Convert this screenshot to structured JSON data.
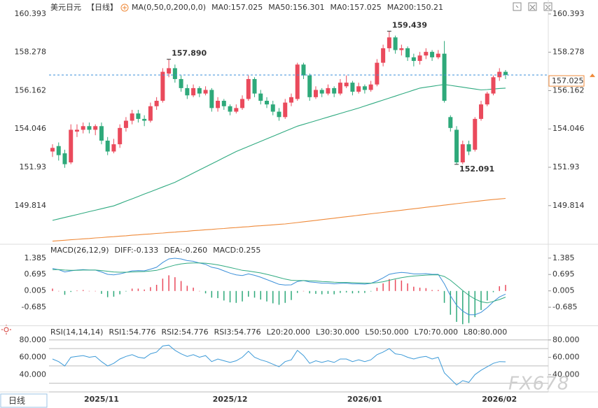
{
  "header": {
    "symbol": "美元日元",
    "period": "【日线】",
    "ma_label": "MA(0,50,0,200,0,0)"
  },
  "footer": {
    "period_button": "日线",
    "watermark": "FX678"
  },
  "chart_data": [
    {
      "type": "candlestick",
      "legend": [
        {
          "label": "MA0:157.025",
          "color": "#3b8fd9"
        },
        {
          "label": "MA50:156.301",
          "color": "#1aa39b"
        },
        {
          "label": "MA0:157.025",
          "color": "#26a9d6"
        },
        {
          "label": "MA200:150.21",
          "color": "#ef8a3a"
        }
      ],
      "categories": [
        null,
        null,
        null,
        null,
        null,
        null,
        null,
        null,
        "2025/11",
        null,
        null,
        null,
        null,
        null,
        null,
        null,
        null,
        null,
        null,
        null,
        null,
        null,
        null,
        null,
        null,
        null,
        null,
        null,
        null,
        "2025/12",
        null,
        null,
        null,
        null,
        null,
        null,
        null,
        null,
        null,
        null,
        null,
        null,
        null,
        null,
        null,
        null,
        null,
        null,
        null,
        null,
        null,
        "2026/01",
        null,
        null,
        null,
        null,
        null,
        null,
        null,
        null,
        null,
        null,
        null,
        null,
        null,
        null,
        null,
        null,
        null,
        null,
        null,
        null,
        null,
        "2026/02",
        null
      ],
      "open": [
        152.8,
        153.1,
        152.7,
        152.2,
        153.9,
        154.0,
        154.2,
        154.0,
        154.2,
        153.4,
        152.8,
        153.2,
        154.1,
        154.5,
        154.9,
        154.6,
        154.5,
        155.3,
        155.6,
        157.1,
        157.4,
        156.8,
        156.3,
        155.9,
        156.3,
        156.0,
        156.2,
        155.2,
        155.6,
        155.3,
        155.0,
        155.2,
        155.7,
        156.8,
        156.0,
        155.6,
        155.4,
        155.0,
        154.7,
        155.5,
        155.7,
        157.6,
        157.0,
        155.8,
        156.2,
        156.0,
        156.3,
        156.0,
        156.4,
        156.6,
        156.1,
        156.4,
        156.2,
        156.5,
        157.7,
        158.5,
        159.1,
        158.4,
        158.5,
        158.0,
        157.8,
        158.1,
        158.3,
        158.0,
        158.2,
        154.7,
        154.0,
        152.2,
        153.2,
        152.9,
        154.6,
        155.4,
        156.0,
        156.9,
        157.2
      ],
      "high": [
        153.2,
        153.3,
        152.9,
        154.3,
        154.3,
        154.4,
        154.4,
        154.3,
        154.4,
        153.6,
        153.5,
        154.3,
        154.7,
        155.1,
        155.1,
        154.8,
        155.5,
        155.8,
        157.4,
        157.89,
        157.6,
        157.0,
        156.5,
        156.5,
        156.4,
        156.4,
        156.3,
        155.8,
        155.7,
        155.4,
        155.4,
        155.9,
        157.0,
        156.9,
        156.2,
        155.8,
        155.6,
        155.2,
        155.7,
        156.0,
        157.7,
        157.7,
        157.1,
        156.4,
        156.3,
        156.5,
        156.4,
        156.8,
        157.0,
        156.7,
        156.6,
        156.5,
        156.7,
        157.9,
        158.7,
        159.439,
        159.2,
        158.7,
        158.6,
        158.2,
        158.3,
        158.5,
        158.4,
        158.4,
        158.9,
        154.8,
        154.2,
        153.4,
        153.4,
        154.7,
        155.6,
        156.1,
        157.0,
        157.4,
        157.3
      ],
      "low": [
        152.5,
        152.3,
        151.9,
        152.1,
        153.6,
        153.8,
        153.8,
        153.7,
        153.2,
        152.6,
        152.7,
        153.0,
        153.9,
        154.3,
        154.4,
        154.2,
        154.4,
        155.1,
        155.5,
        156.9,
        156.6,
        156.1,
        155.7,
        155.8,
        155.8,
        155.9,
        155.0,
        155.0,
        155.1,
        154.8,
        154.9,
        155.1,
        155.6,
        155.8,
        155.4,
        155.2,
        154.8,
        154.5,
        154.6,
        155.3,
        155.6,
        156.8,
        155.6,
        155.7,
        155.8,
        155.9,
        155.8,
        155.9,
        156.3,
        155.9,
        156.0,
        156.0,
        156.1,
        156.4,
        157.5,
        158.3,
        158.2,
        158.1,
        157.8,
        157.5,
        157.6,
        157.9,
        157.8,
        157.9,
        155.5,
        153.9,
        152.091,
        152.1,
        152.6,
        152.8,
        154.5,
        155.3,
        155.9,
        156.7,
        156.8
      ],
      "close": [
        153.0,
        152.6,
        152.1,
        154.0,
        154.0,
        154.2,
        154.0,
        154.2,
        153.4,
        152.8,
        153.2,
        154.1,
        154.5,
        154.9,
        154.6,
        154.5,
        155.3,
        155.6,
        157.2,
        157.4,
        156.8,
        156.3,
        155.9,
        156.3,
        156.0,
        156.2,
        155.2,
        155.6,
        155.3,
        155.0,
        155.2,
        155.7,
        156.8,
        156.0,
        155.6,
        155.4,
        155.0,
        154.7,
        155.5,
        155.8,
        157.6,
        157.0,
        155.8,
        156.2,
        156.0,
        156.3,
        156.0,
        156.6,
        156.6,
        156.1,
        156.4,
        156.2,
        156.5,
        157.7,
        158.5,
        159.1,
        158.4,
        158.5,
        158.0,
        157.8,
        158.1,
        158.3,
        158.0,
        158.2,
        155.6,
        154.1,
        152.2,
        153.2,
        152.8,
        154.6,
        155.4,
        156.0,
        156.9,
        157.2,
        157.025
      ],
      "up_color": "#ea4a5c",
      "down_color": "#2ea97a",
      "series": [
        {
          "color": "#2faa80",
          "values": [
            149.0,
            149.08,
            149.16,
            149.24,
            149.32,
            149.4,
            149.48,
            149.56,
            149.64,
            149.72,
            149.8,
            149.93,
            150.06,
            150.19,
            150.32,
            150.45,
            150.58,
            150.71,
            150.84,
            150.97,
            151.1,
            151.27,
            151.44,
            151.61,
            151.78,
            151.95,
            152.12,
            152.29,
            152.46,
            152.63,
            152.8,
            152.94,
            153.08,
            153.22,
            153.36,
            153.5,
            153.64,
            153.78,
            153.92,
            154.06,
            154.2,
            154.3,
            154.4,
            154.5,
            154.6,
            154.7,
            154.8,
            154.9,
            155.0,
            155.1,
            155.2,
            155.31,
            155.42,
            155.53,
            155.64,
            155.75,
            155.86,
            155.97,
            156.08,
            156.19,
            156.3,
            156.35,
            156.4,
            156.45,
            156.5,
            156.45,
            156.4,
            156.35,
            156.3,
            156.25,
            156.2,
            156.22,
            156.25,
            156.28,
            156.301
          ]
        },
        {
          "color": "#ef8a3a",
          "values": [
            147.85,
            147.88,
            147.9,
            147.93,
            147.95,
            147.98,
            148.0,
            148.03,
            148.05,
            148.08,
            148.1,
            148.13,
            148.15,
            148.18,
            148.2,
            148.23,
            148.25,
            148.28,
            148.3,
            148.33,
            148.35,
            148.38,
            148.4,
            148.43,
            148.45,
            148.48,
            148.5,
            148.53,
            148.55,
            148.58,
            148.6,
            148.63,
            148.65,
            148.68,
            148.7,
            148.73,
            148.75,
            148.78,
            148.8,
            148.84,
            148.88,
            148.92,
            148.96,
            149.0,
            149.04,
            149.08,
            149.12,
            149.16,
            149.2,
            149.24,
            149.28,
            149.32,
            149.36,
            149.4,
            149.44,
            149.48,
            149.52,
            149.56,
            149.6,
            149.64,
            149.68,
            149.72,
            149.76,
            149.8,
            149.84,
            149.88,
            149.92,
            149.96,
            150.0,
            150.04,
            150.08,
            150.12,
            150.15,
            150.18,
            150.21
          ]
        }
      ],
      "annotations": [
        {
          "value": 157.89,
          "label": "157.890"
        },
        {
          "value": 159.439,
          "label": "159.439"
        },
        {
          "value": 152.091,
          "label": "152.091"
        }
      ],
      "last": {
        "value": 157.025,
        "label": "157.025"
      },
      "ylim": [
        147.72,
        160.97
      ],
      "yticks": [
        160.393,
        158.278,
        156.162,
        154.046,
        151.93,
        149.814
      ]
    },
    {
      "type": "macd",
      "title": "MACD(26,12,9)",
      "legend": [
        {
          "label": "DIFF:-0.133",
          "color": "#3b8fd9"
        },
        {
          "label": "DEA:-0.260",
          "color": "#1aa39b"
        },
        {
          "label": "MACD:0.255",
          "color": "#3b8fd9"
        }
      ],
      "series": [
        {
          "color": "#3b8fd9",
          "values": [
            0.95,
            0.9,
            0.8,
            0.85,
            0.88,
            0.9,
            0.88,
            0.88,
            0.8,
            0.7,
            0.68,
            0.72,
            0.78,
            0.85,
            0.86,
            0.85,
            0.92,
            1.0,
            1.2,
            1.35,
            1.38,
            1.35,
            1.28,
            1.25,
            1.18,
            1.12,
            1.0,
            0.95,
            0.85,
            0.75,
            0.68,
            0.65,
            0.72,
            0.66,
            0.58,
            0.48,
            0.38,
            0.28,
            0.25,
            0.26,
            0.4,
            0.44,
            0.38,
            0.36,
            0.33,
            0.33,
            0.3,
            0.32,
            0.33,
            0.3,
            0.3,
            0.29,
            0.32,
            0.42,
            0.55,
            0.7,
            0.75,
            0.78,
            0.76,
            0.72,
            0.72,
            0.73,
            0.7,
            0.7,
            0.3,
            -0.2,
            -0.6,
            -0.85,
            -1.0,
            -1.0,
            -0.9,
            -0.7,
            -0.45,
            -0.25,
            -0.133
          ]
        },
        {
          "color": "#2faa80",
          "values": [
            0.9,
            0.9,
            0.88,
            0.87,
            0.87,
            0.88,
            0.88,
            0.88,
            0.86,
            0.83,
            0.8,
            0.79,
            0.79,
            0.8,
            0.81,
            0.82,
            0.84,
            0.87,
            0.94,
            1.02,
            1.09,
            1.14,
            1.17,
            1.18,
            1.18,
            1.17,
            1.14,
            1.1,
            1.05,
            0.99,
            0.93,
            0.87,
            0.84,
            0.8,
            0.76,
            0.7,
            0.64,
            0.57,
            0.5,
            0.45,
            0.44,
            0.44,
            0.43,
            0.42,
            0.4,
            0.39,
            0.37,
            0.36,
            0.36,
            0.35,
            0.34,
            0.33,
            0.33,
            0.35,
            0.39,
            0.45,
            0.51,
            0.56,
            0.6,
            0.63,
            0.65,
            0.67,
            0.68,
            0.68,
            0.61,
            0.45,
            0.24,
            0.02,
            -0.18,
            -0.34,
            -0.45,
            -0.5,
            -0.44,
            -0.36,
            -0.26
          ]
        }
      ],
      "histogram": {
        "up_color": "#ea4a5c",
        "down_color": "#2ea97a",
        "values": [
          0.1,
          0,
          -0.16,
          -0.04,
          0.02,
          0.04,
          0,
          0,
          -0.12,
          -0.26,
          -0.24,
          -0.14,
          -0.02,
          0.1,
          0.1,
          0.06,
          0.16,
          0.26,
          0.52,
          0.66,
          0.58,
          0.42,
          0.22,
          0.14,
          0,
          -0.1,
          -0.28,
          -0.3,
          -0.4,
          -0.48,
          -0.5,
          -0.44,
          -0.24,
          -0.28,
          -0.36,
          -0.44,
          -0.52,
          -0.58,
          -0.5,
          -0.38,
          -0.08,
          0,
          -0.1,
          -0.12,
          -0.14,
          -0.12,
          -0.14,
          -0.08,
          -0.06,
          -0.1,
          -0.08,
          -0.08,
          -0.02,
          0.14,
          0.32,
          0.5,
          0.48,
          0.44,
          0.32,
          0.18,
          0.14,
          0.12,
          0.04,
          0.04,
          -0.5,
          -1.0,
          -1.3,
          -1.4,
          -1.35,
          -1.1,
          -0.8,
          -0.4,
          -0.05,
          0.2,
          0.255
        ]
      },
      "ylim": [
        -1.45,
        1.88
      ],
      "yticks": [
        1.385,
        0.695,
        0.005,
        -0.685
      ]
    },
    {
      "type": "line",
      "title": "RSI(14,14,14)",
      "legend": [
        {
          "label": "RSI1:54.776",
          "color": "#3b8fd9"
        },
        {
          "label": "RSI2:54.776",
          "color": "#1aa39b"
        },
        {
          "label": "RSI3:54.776",
          "color": "#3b8fd9"
        }
      ],
      "levels": [
        {
          "value": 20,
          "label": "L20:20.000"
        },
        {
          "value": 30,
          "label": "L30:30.000"
        },
        {
          "value": 50,
          "label": "L50:50.000"
        },
        {
          "value": 70,
          "label": "L70:70.000"
        },
        {
          "value": 80,
          "label": "L80:80.000"
        }
      ],
      "level_color": "#bbbbbb",
      "series": [
        {
          "color": "#3c9ad8",
          "values": [
            58,
            55,
            50,
            60,
            61,
            62,
            60,
            61,
            55,
            50,
            53,
            58,
            61,
            63,
            60,
            59,
            64,
            66,
            73,
            74,
            68,
            64,
            61,
            63,
            60,
            62,
            55,
            58,
            56,
            54,
            56,
            60,
            67,
            60,
            57,
            55,
            52,
            49,
            55,
            57,
            68,
            62,
            53,
            56,
            54,
            56,
            54,
            58,
            58,
            55,
            57,
            55,
            57,
            63,
            66,
            70,
            64,
            63,
            60,
            58,
            60,
            61,
            58,
            60,
            42,
            35,
            28,
            33,
            31,
            40,
            45,
            49,
            53,
            55,
            54.776
          ]
        }
      ],
      "ylim": [
        20,
        96
      ],
      "yticks": [
        {
          "value": 80,
          "label": "80.000"
        },
        {
          "value": 60,
          "label": "60.000"
        },
        {
          "value": 40,
          "label": "40.000"
        }
      ]
    }
  ]
}
